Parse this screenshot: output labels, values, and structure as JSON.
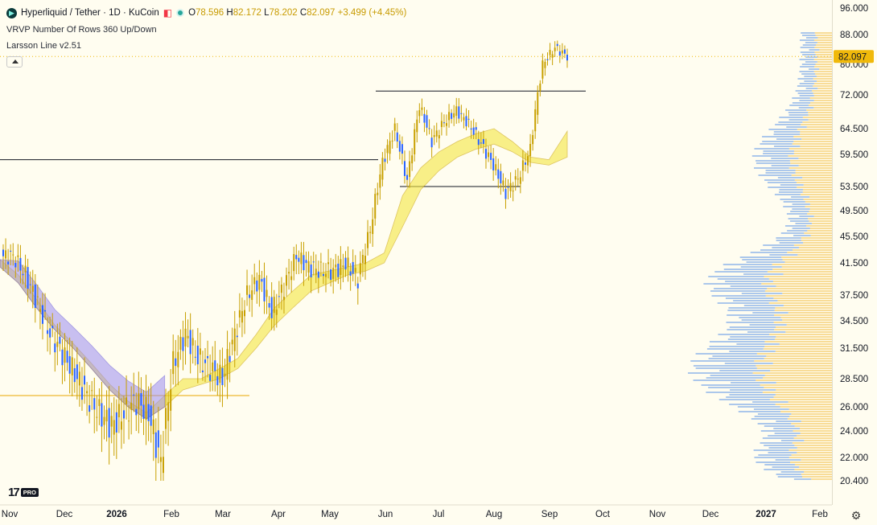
{
  "legend": {
    "symbol": "Hyperliquid / Tether · 1D · KuCoin",
    "o_label": "O",
    "o_value": "78.596",
    "h_label": "H",
    "h_value": "82.172",
    "l_label": "L",
    "l_value": "78.202",
    "c_label": "C",
    "c_value": "82.097",
    "change": "+3.499 (+4.45%)",
    "indicator_1": "VRVP Number Of Rows 360 Up/Down",
    "indicator_2": "Larsson Line v2.51"
  },
  "price_badge": "82.097",
  "logo_text": "PRO",
  "colors": {
    "up_volume": "#f5d07a",
    "down_volume": "#8fb4ea",
    "candle": "#2962ff",
    "wick": "#c8a000",
    "price_badge": "#f0b90b"
  },
  "chart_data": {
    "type": "candlestick",
    "y_axis_labels": [
      "96.000",
      "88.000",
      "80.000",
      "72.000",
      "64.500",
      "59.500",
      "53.500",
      "49.500",
      "45.500",
      "41.500",
      "37.500",
      "34.500",
      "31.500",
      "28.500",
      "26.000",
      "24.000",
      "22.000",
      "20.400"
    ],
    "x_axis_labels": [
      "Nov",
      "Dec",
      "2026",
      "Feb",
      "Mar",
      "Apr",
      "May",
      "Jun",
      "Jul",
      "Aug",
      "Sep",
      "Oct",
      "Nov",
      "Dec",
      "2027",
      "Feb"
    ],
    "ylim": [
      20.0,
      96.0
    ],
    "last_price": 82.097,
    "price_path": [
      {
        "date": "Nov 1",
        "close": 42.5
      },
      {
        "date": "Nov 8",
        "close": 40.0
      },
      {
        "date": "Nov 15",
        "close": 36.5
      },
      {
        "date": "Nov 22",
        "close": 33.0
      },
      {
        "date": "Nov 29",
        "close": 31.0
      },
      {
        "date": "Dec 6",
        "close": 29.0
      },
      {
        "date": "Dec 13",
        "close": 27.0
      },
      {
        "date": "Dec 20",
        "close": 25.5
      },
      {
        "date": "Dec 27",
        "close": 24.5
      },
      {
        "date": "Jan 3",
        "close": 25.5
      },
      {
        "date": "Jan 10",
        "close": 26.5
      },
      {
        "date": "Jan 17",
        "close": 25.5
      },
      {
        "date": "Jan 24",
        "close": 21.5
      },
      {
        "date": "Jan 31",
        "close": 30.0
      },
      {
        "date": "Feb 7",
        "close": 33.0
      },
      {
        "date": "Feb 14",
        "close": 30.5
      },
      {
        "date": "Feb 21",
        "close": 29.5
      },
      {
        "date": "Feb 28",
        "close": 28.5
      },
      {
        "date": "Mar 7",
        "close": 33.0
      },
      {
        "date": "Mar 14",
        "close": 37.5
      },
      {
        "date": "Mar 21",
        "close": 39.5
      },
      {
        "date": "Mar 28",
        "close": 35.5
      },
      {
        "date": "Apr 4",
        "close": 38.5
      },
      {
        "date": "Apr 11",
        "close": 42.5
      },
      {
        "date": "Apr 18",
        "close": 41.0
      },
      {
        "date": "Apr 25",
        "close": 40.5
      },
      {
        "date": "May 2",
        "close": 40.5
      },
      {
        "date": "May 9",
        "close": 41.5
      },
      {
        "date": "May 16",
        "close": 39.5
      },
      {
        "date": "May 23",
        "close": 46.5
      },
      {
        "date": "May 30",
        "close": 58.0
      },
      {
        "date": "Jun 6",
        "close": 64.5
      },
      {
        "date": "Jun 13",
        "close": 54.5
      },
      {
        "date": "Jun 20",
        "close": 69.5
      },
      {
        "date": "Jun 27",
        "close": 62.0
      },
      {
        "date": "Jul 4",
        "close": 66.0
      },
      {
        "date": "Jul 11",
        "close": 68.5
      },
      {
        "date": "Jul 18",
        "close": 65.5
      },
      {
        "date": "Jul 25",
        "close": 61.5
      },
      {
        "date": "Aug 1",
        "close": 57.5
      },
      {
        "date": "Aug 8",
        "close": 52.5
      },
      {
        "date": "Aug 15",
        "close": 55.0
      },
      {
        "date": "Aug 22",
        "close": 60.5
      },
      {
        "date": "Aug 29",
        "close": 80.0
      },
      {
        "date": "Sep 5",
        "close": 84.5
      },
      {
        "date": "Sep 10",
        "close": 82.097
      }
    ],
    "horizontal_lines": [
      73.0,
      58.5,
      53.5,
      27.0
    ],
    "ma_series": [
      {
        "values": [
          42,
          40,
          37,
          34,
          32,
          30,
          28,
          26.5,
          25.5,
          27,
          28.5,
          28.5,
          29.5,
          30.5,
          33,
          36,
          38,
          40,
          40.5,
          41,
          41.5,
          43,
          52,
          57,
          60,
          62,
          63.5,
          64.5,
          62,
          59,
          58.5,
          64
        ]
      },
      {
        "values": [
          41,
          39,
          36,
          33.5,
          31.5,
          29.5,
          27.5,
          26,
          25,
          26,
          27.5,
          28,
          28.5,
          29.5,
          31.5,
          34,
          36,
          38,
          39,
          40,
          40.5,
          41.5,
          47,
          53,
          56.5,
          59,
          60.5,
          61.5,
          60,
          58,
          57.5,
          59
        ]
      }
    ]
  }
}
